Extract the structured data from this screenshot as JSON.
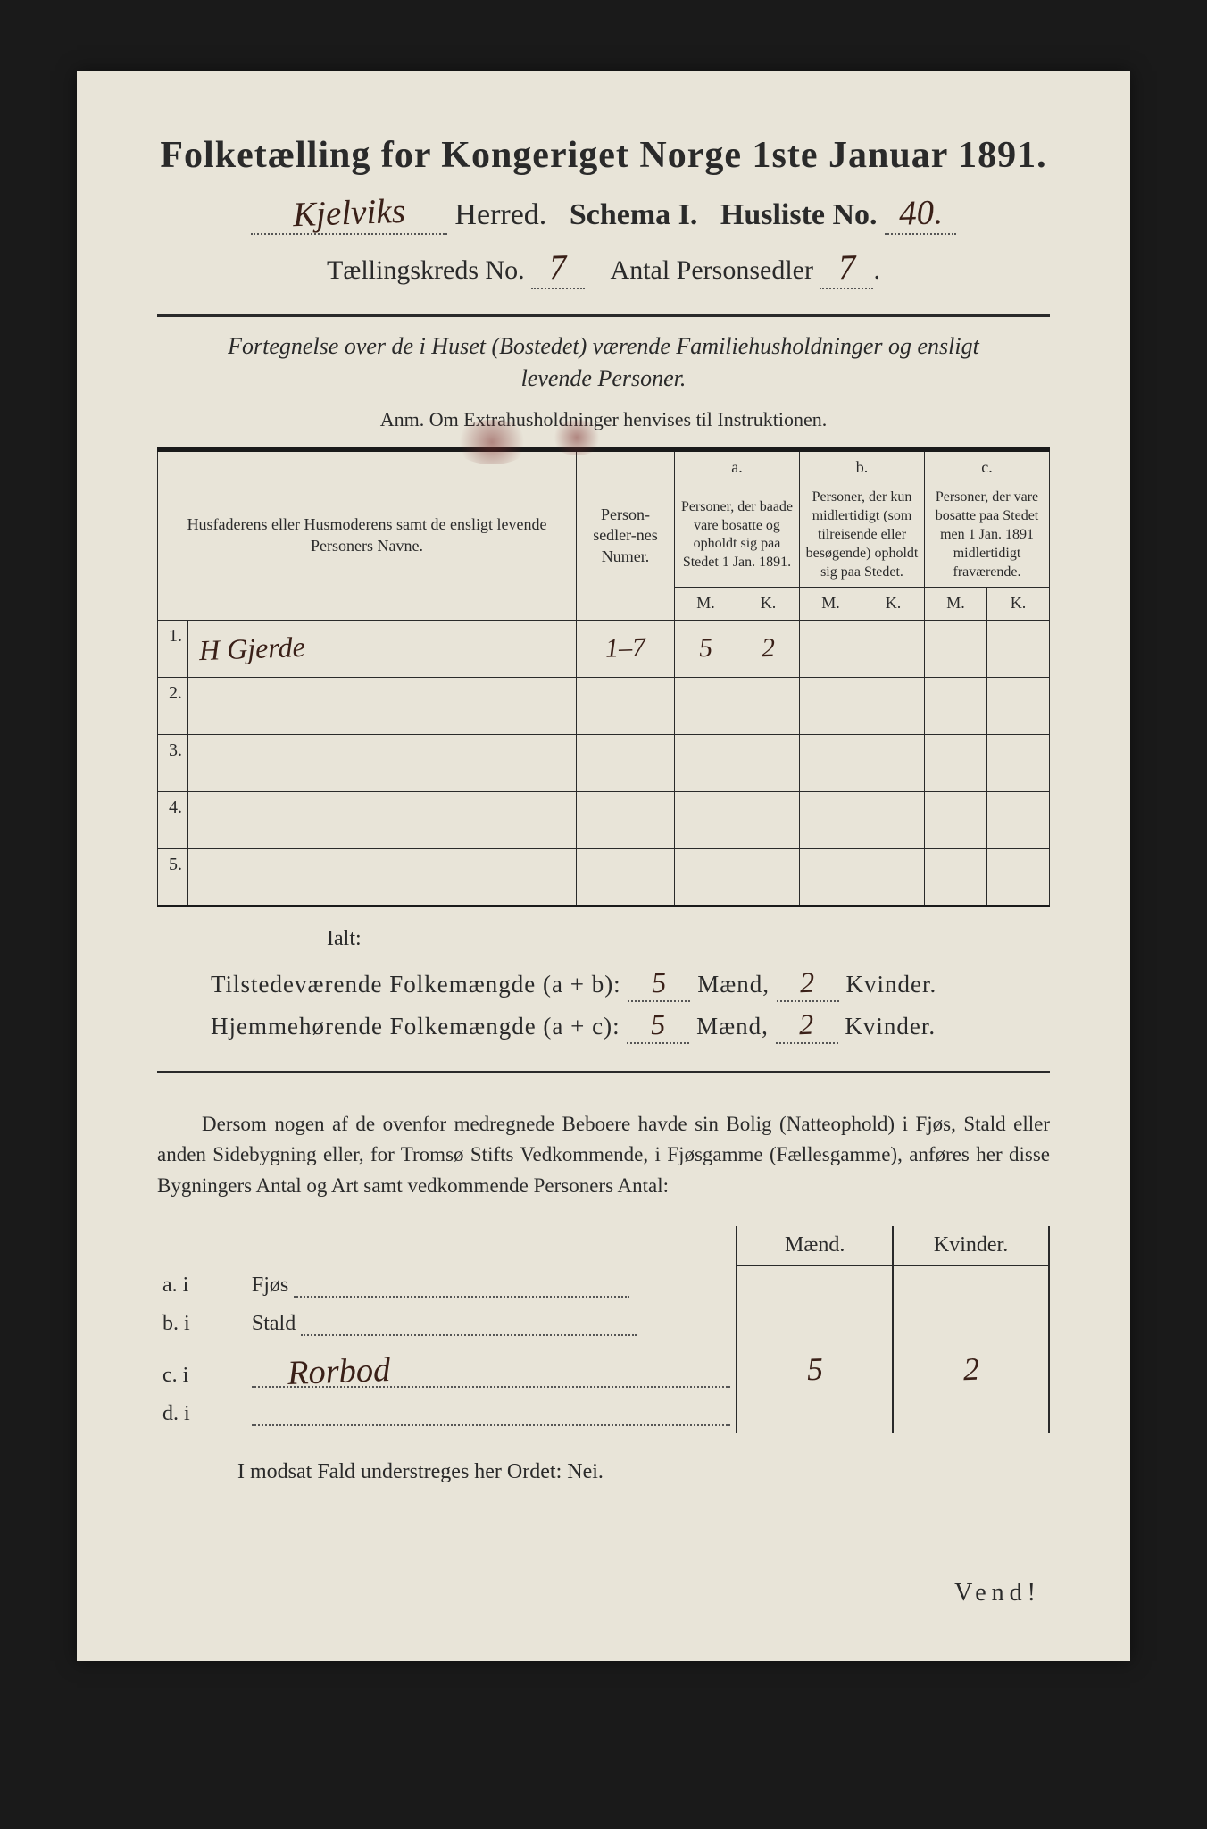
{
  "title": "Folketælling for Kongeriget Norge 1ste Januar 1891.",
  "header": {
    "herred_hw": "Kjelviks",
    "herred_label": "Herred.",
    "schema_label": "Schema I.",
    "husliste_label": "Husliste No.",
    "husliste_no_hw": "40.",
    "kreds_label": "Tællingskreds No.",
    "kreds_no_hw": "7",
    "antal_label": "Antal Personsedler",
    "antal_no_hw": "7"
  },
  "subtitle1": "Fortegnelse over de i Huset (Bostedet) værende Familiehusholdninger og ensligt",
  "subtitle2": "levende Personer.",
  "anm": "Anm.  Om Extrahusholdninger henvises til Instruktionen.",
  "table": {
    "col_name": "Husfaderens eller Husmoderens samt de ensligt levende Personers Navne.",
    "col_num": "Person-sedler-nes Numer.",
    "col_a_top": "a.",
    "col_a": "Personer, der baade vare bosatte og opholdt sig paa Stedet 1 Jan. 1891.",
    "col_b_top": "b.",
    "col_b": "Personer, der kun midlertidigt (som tilreisende eller besøgende) opholdt sig paa Stedet.",
    "col_c_top": "c.",
    "col_c": "Personer, der vare bosatte paa Stedet men 1 Jan. 1891 midlertidigt fraværende.",
    "m": "M.",
    "k": "K.",
    "rows": [
      {
        "n": "1.",
        "name_hw": "H Gjerde",
        "num_hw": "1–7",
        "am": "5",
        "ak": "2",
        "bm": "",
        "bk": "",
        "cm": "",
        "ck": ""
      },
      {
        "n": "2.",
        "name_hw": "",
        "num_hw": "",
        "am": "",
        "ak": "",
        "bm": "",
        "bk": "",
        "cm": "",
        "ck": ""
      },
      {
        "n": "3.",
        "name_hw": "",
        "num_hw": "",
        "am": "",
        "ak": "",
        "bm": "",
        "bk": "",
        "cm": "",
        "ck": ""
      },
      {
        "n": "4.",
        "name_hw": "",
        "num_hw": "",
        "am": "",
        "ak": "",
        "bm": "",
        "bk": "",
        "cm": "",
        "ck": ""
      },
      {
        "n": "5.",
        "name_hw": "",
        "num_hw": "",
        "am": "",
        "ak": "",
        "bm": "",
        "bk": "",
        "cm": "",
        "ck": ""
      }
    ]
  },
  "ialt": "Ialt:",
  "totals": {
    "line1_label": "Tilstedeværende Folkemængde (a + b):",
    "line1_m_hw": "5",
    "line1_k_hw": "2",
    "line2_label": "Hjemmehørende Folkemængde (a + c):",
    "line2_m_hw": "5",
    "line2_k_hw": "2",
    "maend": "Mænd,",
    "kvinder": "Kvinder."
  },
  "para": "Dersom nogen af de ovenfor medregnede Beboere havde sin Bolig (Natteophold) i Fjøs, Stald eller anden Sidebygning eller, for Tromsø Stifts Vedkommende, i Fjøsgamme (Fællesgamme), anføres her disse Bygningers Antal og Art samt vedkommende Personers Antal:",
  "bldg": {
    "maend": "Mænd.",
    "kvinder": "Kvinder.",
    "rows": [
      {
        "lbl": "a.  i",
        "type": "Fjøs",
        "hw": "",
        "m": "",
        "k": ""
      },
      {
        "lbl": "b.  i",
        "type": "Stald",
        "hw": "",
        "m": "",
        "k": ""
      },
      {
        "lbl": "c.  i",
        "type": "",
        "hw": "Rorbod",
        "m": "5",
        "k": "2"
      },
      {
        "lbl": "d.  i",
        "type": "",
        "hw": "",
        "m": "",
        "k": ""
      }
    ]
  },
  "modsat": "I modsat Fald understreges her Ordet: Nei.",
  "vend": "Vend!",
  "colors": {
    "paper": "#e8e4d8",
    "ink": "#2a2a2a",
    "handwriting": "#3a2018",
    "background": "#1a1a1a"
  }
}
